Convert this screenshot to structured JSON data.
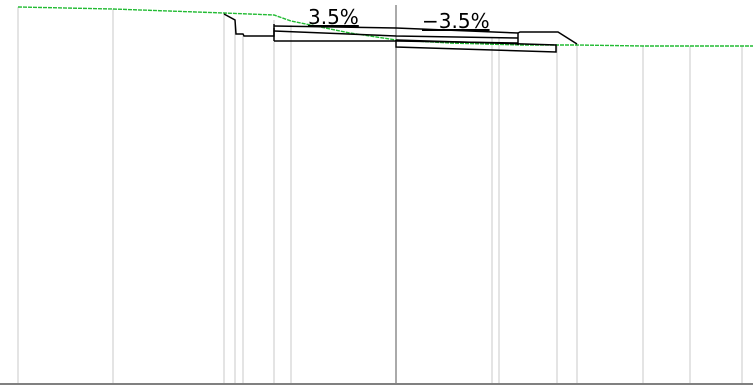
{
  "slopes": {
    "left": "3.5%",
    "right": "−3.5%"
  },
  "colors": {
    "ground_line": "#22bb33",
    "structure": "#000000",
    "grid_line": "#c8c8c8"
  }
}
